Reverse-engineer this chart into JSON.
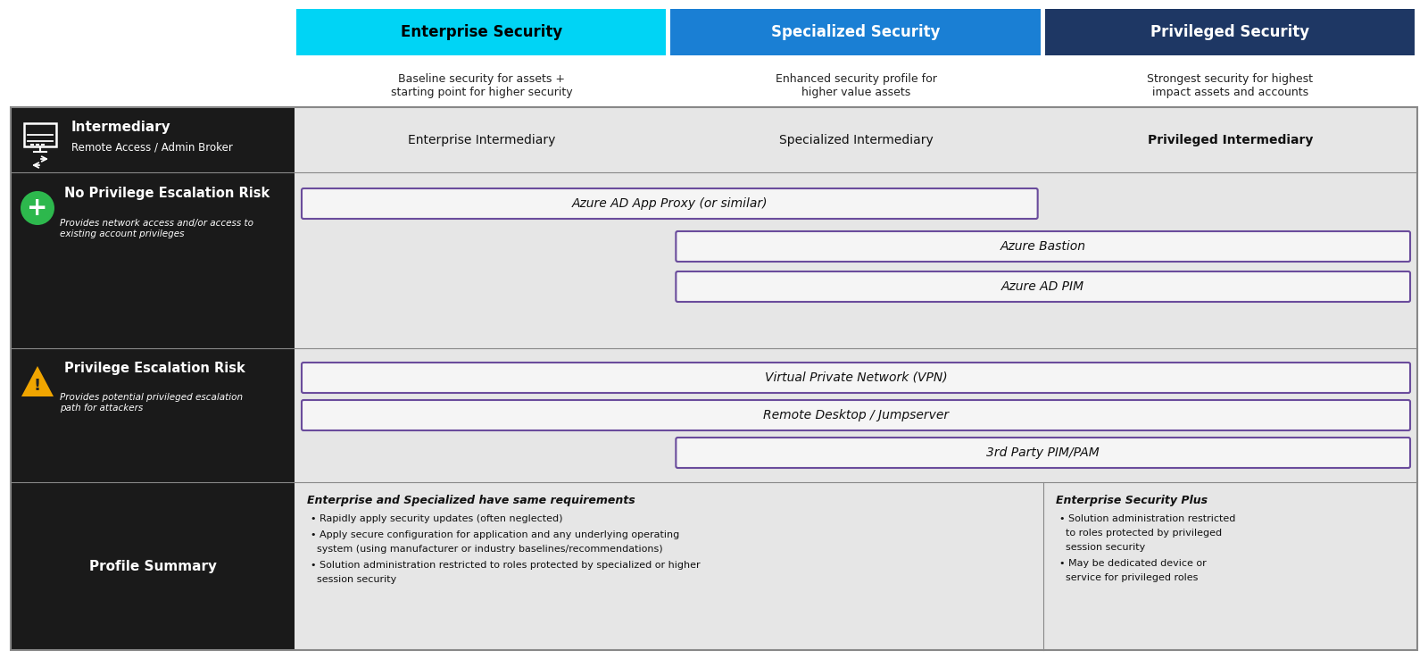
{
  "fig_width": 16.0,
  "fig_height": 7.38,
  "bg_color": "#ffffff",
  "header_colors": [
    "#00d4f5",
    "#1a7fd4",
    "#1e3764"
  ],
  "header_labels": [
    "Enterprise Security",
    "Specialized Security",
    "Privileged Security"
  ],
  "header_text_colors": [
    "#000000",
    "#ffffff",
    "#ffffff"
  ],
  "header_subtitles": [
    "Baseline security for assets +\nstarting point for higher security",
    "Enhanced security profile for\nhigher value assets",
    "Strongest security for highest\nimpact assets and accounts"
  ],
  "intermediary_label": "Intermediary",
  "intermediary_sublabel": "Remote Access / Admin Broker",
  "intermediary_cols": [
    "Enterprise Intermediary",
    "Specialized Intermediary",
    "Privileged Intermediary"
  ],
  "no_risk_label": "No Privilege Escalation Risk",
  "no_risk_sublabel": "Provides network access and/or access to\nexisting account privileges",
  "priv_risk_label": "Privilege Escalation Risk",
  "priv_risk_sublabel": "Provides potential privileged escalation\npath for attackers",
  "profile_label": "Profile Summary",
  "box_border_color": "#6a4c9c",
  "box_bg_color": "#f5f5f5",
  "azure_ad_app_proxy": "Azure AD App Proxy (or similar)",
  "azure_bastion": "Azure Bastion",
  "azure_ad_pim": "Azure AD PIM",
  "vpn": "Virtual Private Network (VPN)",
  "remote_desktop": "Remote Desktop / Jumpserver",
  "third_party": "3rd Party PIM/PAM",
  "summary_left_title": "Enterprise and Specialized have same requirements",
  "summary_left_bullets": [
    "Rapidly apply security updates (often neglected)",
    "Apply secure configuration for application and any underlying operating\n  system (using manufacturer or industry baselines/recommendations)",
    "Solution administration restricted to roles protected by specialized or higher\n  session security"
  ],
  "summary_right_title": "Enterprise Security Plus",
  "summary_right_bullets": [
    "Solution administration restricted\n  to roles protected by privileged\n  session security",
    "May be dedicated device or\n  service for privileged roles"
  ]
}
